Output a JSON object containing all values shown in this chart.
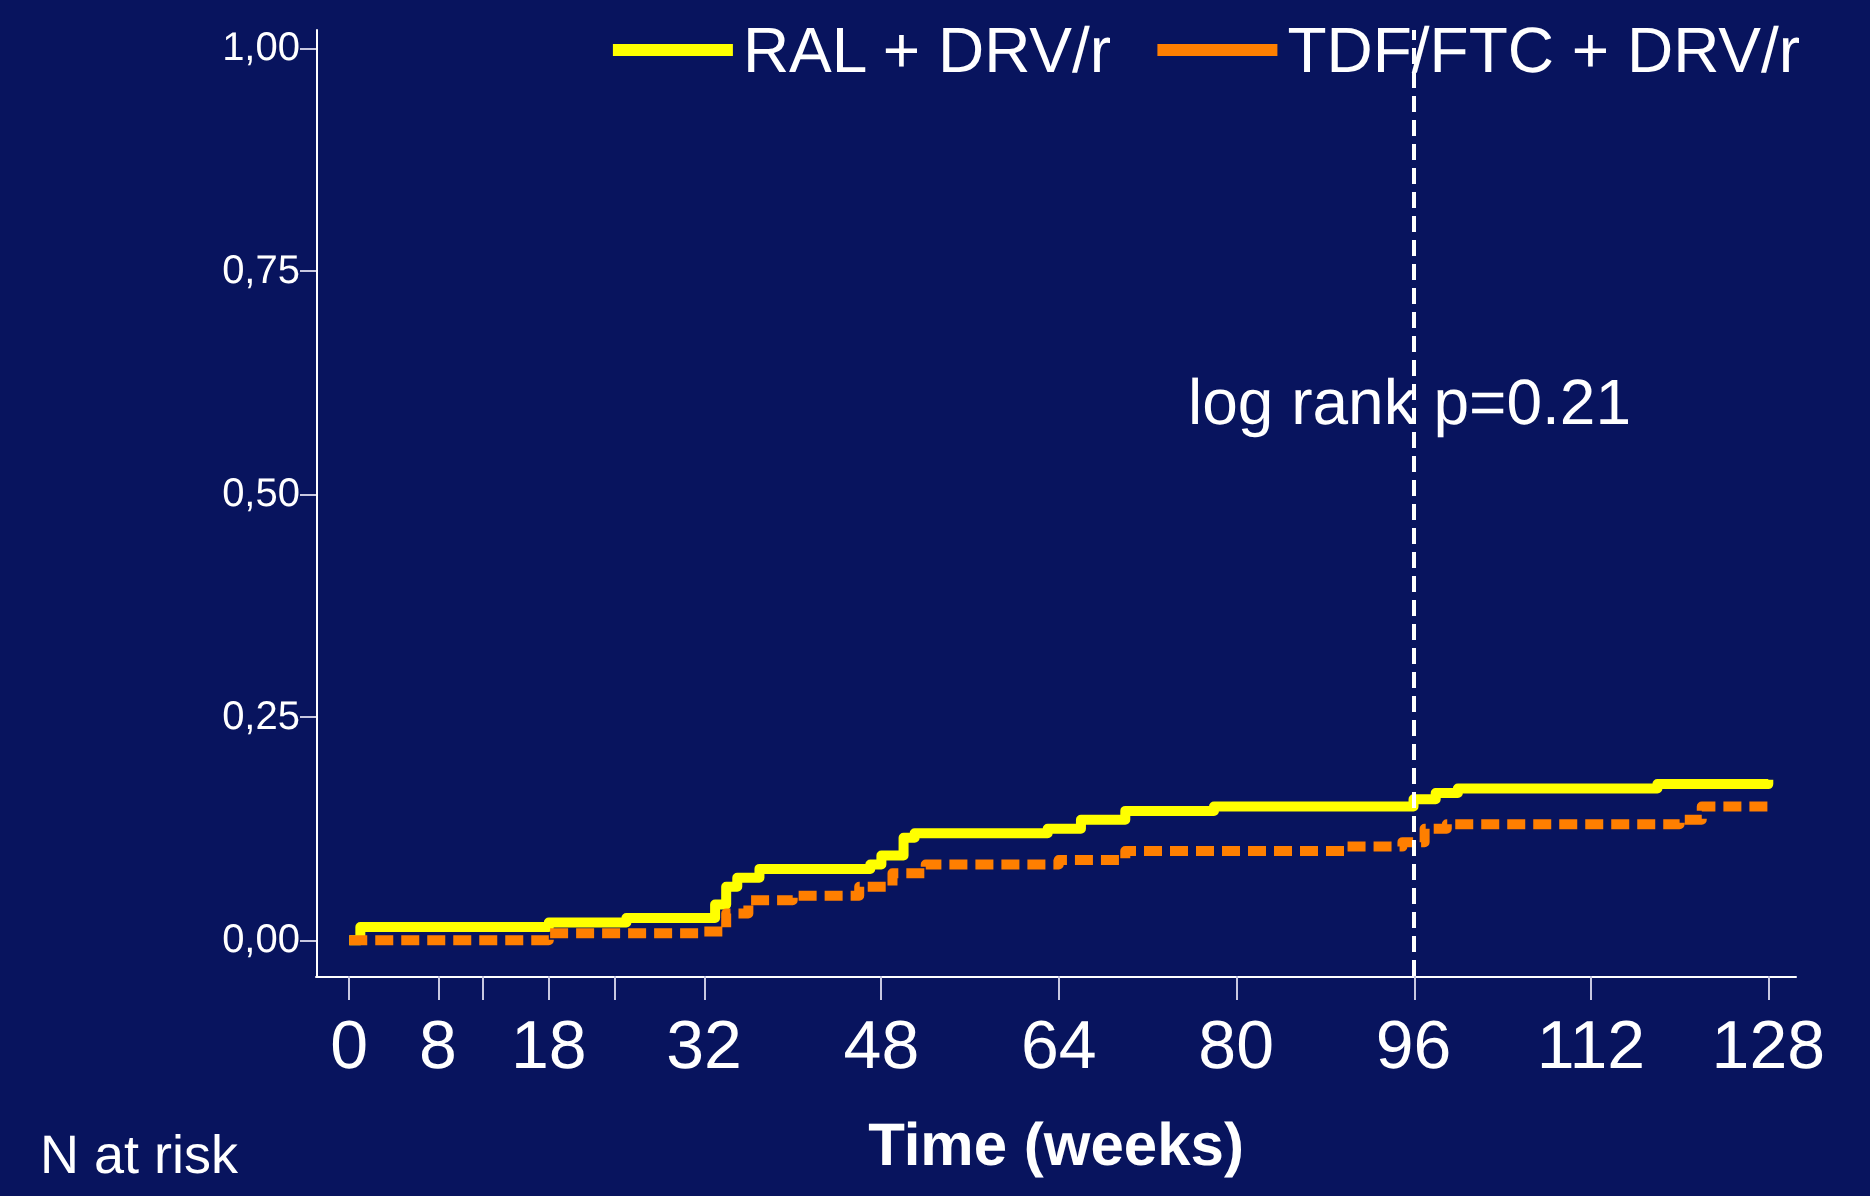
{
  "chart_data": {
    "type": "step",
    "xlabel": "Time (weeks)",
    "annotations": [
      "log rank p=0.21",
      "N at risk"
    ],
    "xlim": [
      -3,
      130.5
    ],
    "ylim": [
      -0.04,
      1.02
    ],
    "xticks": [
      0,
      8,
      {
        "value": 12,
        "label": null
      },
      18,
      {
        "value": 24,
        "label": null
      },
      32,
      48,
      64,
      80,
      96,
      112,
      128
    ],
    "yticks": [
      {
        "value": 0,
        "label": "0,00"
      },
      {
        "value": 0.25,
        "label": "0,25"
      },
      {
        "value": 0.5,
        "label": "0,50"
      },
      {
        "value": 0.75,
        "label": "0,75"
      },
      {
        "value": 1,
        "label": "1,00"
      }
    ],
    "series": [
      {
        "name": "RAL + DRV/r",
        "color": "#ffff00",
        "line_style": "solid",
        "x": [
          0,
          1,
          18,
          25,
          32,
          33,
          34,
          35,
          37,
          47,
          48,
          50,
          51,
          63,
          66,
          70,
          78,
          96,
          98,
          100,
          118,
          128
        ],
        "values": [
          0,
          0.015,
          0.02,
          0.025,
          0.025,
          0.04,
          0.06,
          0.07,
          0.08,
          0.085,
          0.095,
          0.115,
          0.12,
          0.125,
          0.135,
          0.145,
          0.15,
          0.158,
          0.165,
          0.17,
          0.175,
          0.18
        ]
      },
      {
        "name": "TDF/FTC + DRV/r",
        "color": "#ff7f00",
        "line_style": "dashed",
        "x": [
          0,
          18,
          32,
          34,
          36,
          40,
          46,
          49,
          52,
          64,
          70,
          90,
          95,
          97,
          99,
          120,
          122,
          128
        ],
        "values": [
          0,
          0.008,
          0.01,
          0.03,
          0.045,
          0.05,
          0.06,
          0.075,
          0.085,
          0.09,
          0.1,
          0.105,
          0.11,
          0.125,
          0.13,
          0.135,
          0.15,
          0.15
        ]
      }
    ],
    "ref_lines": [
      {
        "axis": "x",
        "value": 96,
        "color": "#ffffff",
        "line_style": "dashed"
      }
    ],
    "legend": "top right",
    "grid": false,
    "marker": "none"
  }
}
